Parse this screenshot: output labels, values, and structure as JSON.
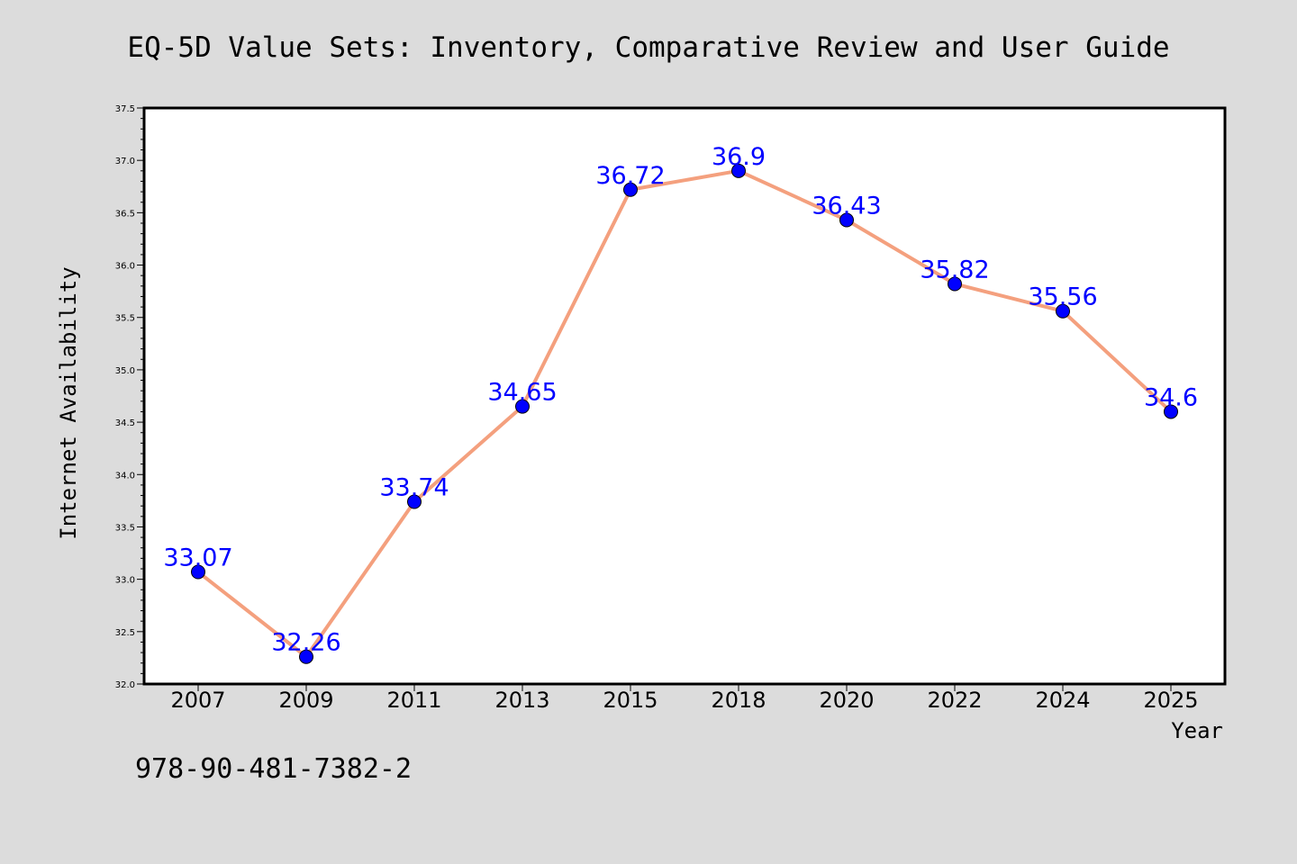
{
  "title": "EQ-5D Value Sets: Inventory, Comparative Review and User Guide",
  "footer": "978-90-481-7382-2",
  "colors": {
    "background": "#dcdcdc",
    "plot_background": "#ffffff",
    "line": "#f4a07e",
    "marker": "#0000ff",
    "label": "#0000ff"
  },
  "chart_data": {
    "type": "line",
    "xlabel": "Year",
    "ylabel": "Internet Availability",
    "categories": [
      "2007",
      "2009",
      "2011",
      "2013",
      "2015",
      "2018",
      "2020",
      "2022",
      "2024",
      "2025"
    ],
    "series": [
      {
        "values": [
          33.07,
          32.26,
          33.74,
          34.65,
          36.72,
          36.9,
          36.43,
          35.82,
          35.56,
          34.6
        ]
      }
    ],
    "data_labels": [
      "33.07",
      "32.26",
      "33.74",
      "34.65",
      "36.72",
      "36.9",
      "36.43",
      "35.82",
      "35.56",
      "34.6"
    ],
    "ylim": [
      32.0,
      37.5
    ],
    "yticks": [
      "32.0",
      "32.5",
      "33.0",
      "33.5",
      "34.0",
      "34.5",
      "35.0",
      "35.5",
      "36.0",
      "36.5",
      "37.0",
      "37.5"
    ],
    "grid": false,
    "legend": "none"
  }
}
